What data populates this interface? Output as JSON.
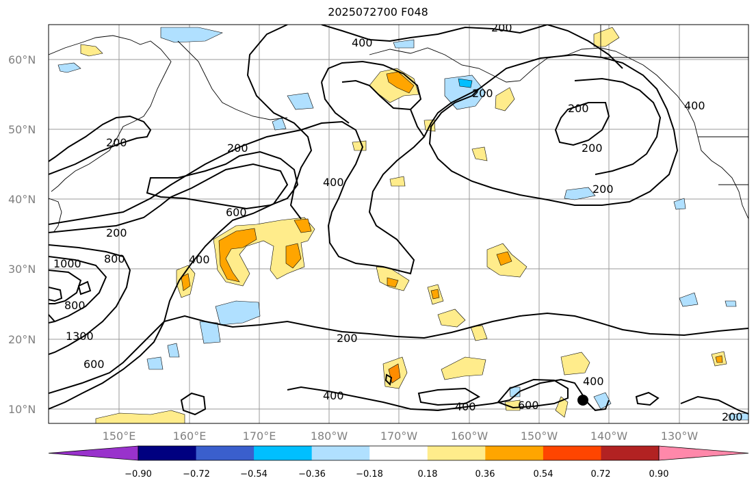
{
  "title": "2025072700 F048",
  "lon_labels": [
    "150°E",
    "160°E",
    "170°E",
    "180°W",
    "170°W",
    "160°W",
    "150°W",
    "140°W",
    "130°W"
  ],
  "lat_labels": [
    "60°N",
    "50°N",
    "40°N",
    "30°N",
    "20°N",
    "10°N"
  ],
  "colorbar": {
    "tick_labels": [
      "−0.90",
      "−0.72",
      "−0.54",
      "−0.36",
      "−0.18",
      "0.18",
      "0.36",
      "0.54",
      "0.72",
      "0.90"
    ],
    "colors": [
      "#9932cc",
      "#000080",
      "#3a5fcd",
      "#00bfff",
      "#b0e0ff",
      "#ffffff",
      "#ffec8b",
      "#ffa500",
      "#ff4500",
      "#b22222",
      "#ff88aa"
    ]
  },
  "contour_labels": [
    "200",
    "400",
    "200",
    "200",
    "200",
    "400",
    "600",
    "200",
    "200",
    "200",
    "200",
    "400",
    "1000",
    "800",
    "800",
    "1300",
    "600",
    "200",
    "400",
    "400",
    "600",
    "400",
    "400",
    "200"
  ],
  "marker": "black-dot"
}
